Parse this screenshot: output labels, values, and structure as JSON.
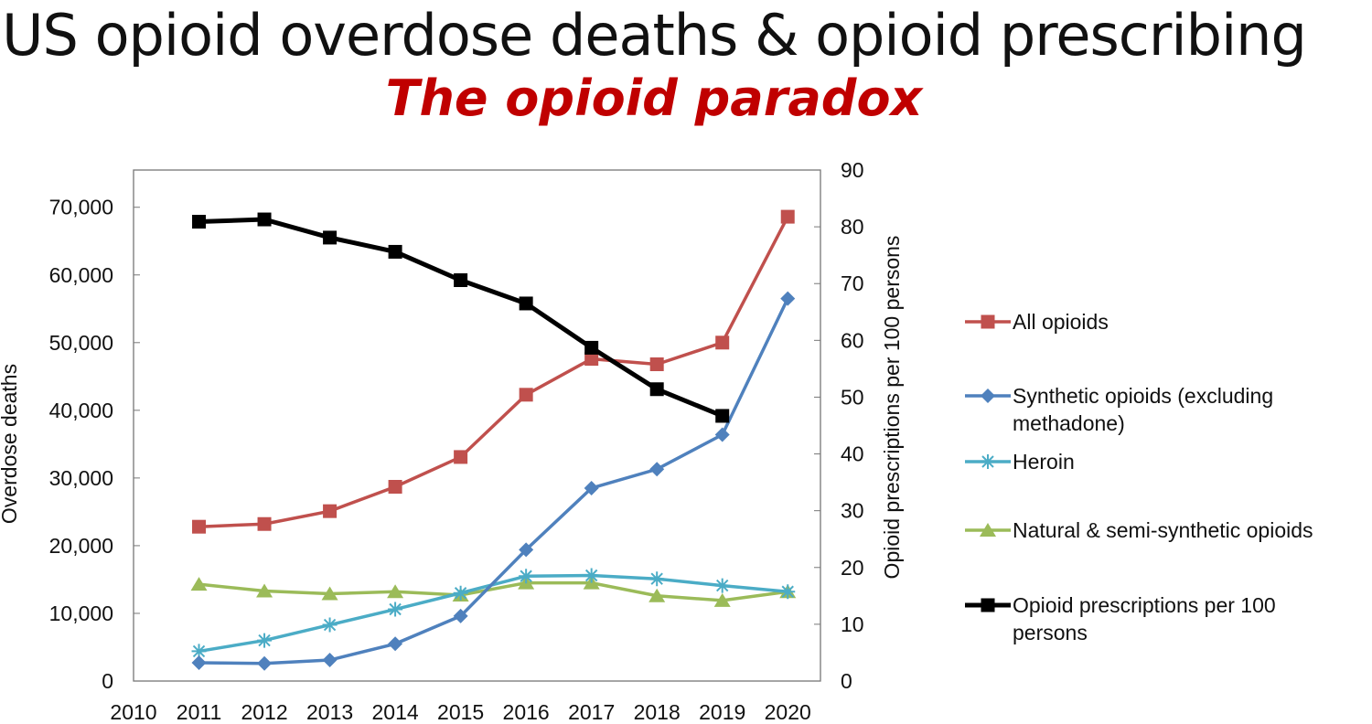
{
  "title": "US opioid overdose deaths & opioid prescribing",
  "subtitle": "The opioid paradox",
  "chart_data": {
    "type": "line",
    "x": [
      2011,
      2012,
      2013,
      2014,
      2015,
      2016,
      2017,
      2018,
      2019,
      2020
    ],
    "xticks": [
      "2010",
      "2011",
      "2012",
      "2013",
      "2014",
      "2015",
      "2016",
      "2017",
      "2018",
      "2019",
      "2020"
    ],
    "xlim": [
      2010,
      2020.5
    ],
    "ylabel": "Overdose deaths",
    "ylim": [
      0,
      75500
    ],
    "yticks": [
      "0",
      "10,000",
      "20,000",
      "30,000",
      "40,000",
      "50,000",
      "60,000",
      "70,000"
    ],
    "y2label": "Opioid prescriptions per 100 persons",
    "y2lim": [
      0,
      90
    ],
    "y2ticks": [
      "0",
      "10",
      "20",
      "30",
      "40",
      "50",
      "60",
      "70",
      "80",
      "90"
    ],
    "grid": false,
    "legend_position": "right",
    "series": [
      {
        "name": "All opioids",
        "axis": "left",
        "color": "#c0504d",
        "marker": "square",
        "values": [
          22800,
          23200,
          25100,
          28700,
          33100,
          42300,
          47600,
          46800,
          50000,
          68600
        ]
      },
      {
        "name": "Synthetic opioids (excluding methadone)",
        "axis": "left",
        "color": "#4f81bd",
        "marker": "diamond",
        "values": [
          2700,
          2600,
          3100,
          5500,
          9600,
          19400,
          28500,
          31300,
          36400,
          56500
        ]
      },
      {
        "name": "Heroin",
        "axis": "left",
        "color": "#4bacc6",
        "marker": "star",
        "values": [
          4400,
          6000,
          8300,
          10600,
          13000,
          15500,
          15600,
          15100,
          14100,
          13200
        ]
      },
      {
        "name": "Natural & semi-synthetic opioids",
        "axis": "left",
        "color": "#9bbb59",
        "marker": "triangle",
        "values": [
          14300,
          13300,
          12900,
          13200,
          12700,
          14500,
          14500,
          12600,
          11900,
          13200
        ]
      },
      {
        "name": "Opioid prescriptions per 100 persons",
        "axis": "right",
        "color": "#000000",
        "marker": "square",
        "values": [
          80.9,
          81.3,
          78.1,
          75.6,
          70.6,
          66.5,
          58.7,
          51.4,
          46.7,
          null
        ]
      }
    ]
  }
}
